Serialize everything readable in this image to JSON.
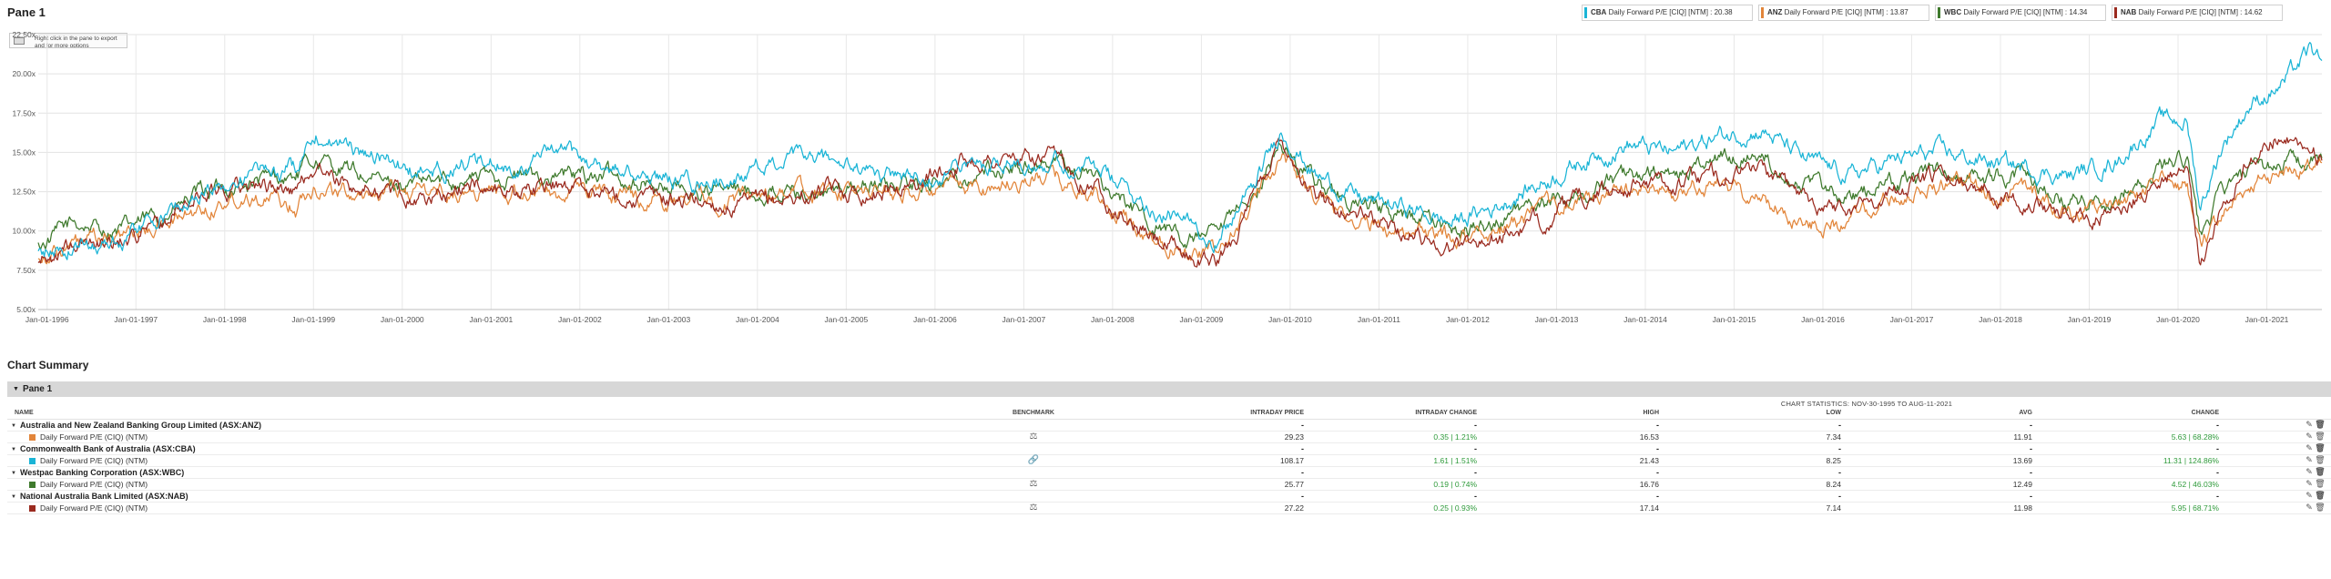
{
  "pane": {
    "title": "Pane 1"
  },
  "hint": {
    "text": "Right click in the pane to export and for more options"
  },
  "legend": [
    {
      "ticker": "CBA",
      "label": " Daily Forward P/E [CIQ] [NTM] : 20.38",
      "color": "#1ab4d6"
    },
    {
      "ticker": "ANZ",
      "label": " Daily Forward P/E [CIQ] [NTM] : 13.87",
      "color": "#e2853a"
    },
    {
      "ticker": "WBC",
      "label": " Daily Forward P/E [CIQ] [NTM] : 14.34",
      "color": "#3f7a2d"
    },
    {
      "ticker": "NAB",
      "label": " Daily Forward P/E [CIQ] [NTM] : 14.62",
      "color": "#9a2a1f"
    }
  ],
  "chart_data": {
    "type": "line",
    "x_labels": [
      "Jan-01-1996",
      "Jan-01-1997",
      "Jan-01-1998",
      "Jan-01-1999",
      "Jan-01-2000",
      "Jan-01-2001",
      "Jan-01-2002",
      "Jan-01-2003",
      "Jan-01-2004",
      "Jan-01-2005",
      "Jan-01-2006",
      "Jan-01-2007",
      "Jan-01-2008",
      "Jan-01-2009",
      "Jan-01-2010",
      "Jan-01-2011",
      "Jan-01-2012",
      "Jan-01-2013",
      "Jan-01-2014",
      "Jan-01-2015",
      "Jan-01-2016",
      "Jan-01-2017",
      "Jan-01-2018",
      "Jan-01-2019",
      "Jan-01-2020",
      "Jan-01-2021"
    ],
    "y_ticks": [
      "5.00x",
      "7.50x",
      "10.00x",
      "12.50x",
      "15.00x",
      "17.50x",
      "20.00x",
      "22.50x"
    ],
    "ylim": [
      5,
      22.5
    ],
    "xlim": [
      1995.9,
      2021.62
    ],
    "grid": true,
    "legend_position": "top-right",
    "series": [
      {
        "name": "WBC",
        "color": "#3f7a2d",
        "points": [
          [
            1995.9,
            9.0
          ],
          [
            1996.3,
            10.5
          ],
          [
            1996.8,
            10.0
          ],
          [
            1997.3,
            11.0
          ],
          [
            1997.8,
            12.5
          ],
          [
            1998.3,
            13.0
          ],
          [
            1998.8,
            13.5
          ],
          [
            1999.0,
            14.5
          ],
          [
            1999.3,
            14.0
          ],
          [
            1999.8,
            13.0
          ],
          [
            2000.3,
            13.0
          ],
          [
            2000.8,
            13.5
          ],
          [
            2001.3,
            13.5
          ],
          [
            2001.8,
            13.5
          ],
          [
            2002.3,
            13.5
          ],
          [
            2002.8,
            13.0
          ],
          [
            2003.3,
            12.5
          ],
          [
            2003.8,
            12.5
          ],
          [
            2004.3,
            12.5
          ],
          [
            2004.8,
            12.5
          ],
          [
            2005.3,
            13.0
          ],
          [
            2005.8,
            13.0
          ],
          [
            2006.3,
            13.5
          ],
          [
            2006.8,
            14.0
          ],
          [
            2007.3,
            14.5
          ],
          [
            2007.8,
            13.5
          ],
          [
            2008.3,
            11.0
          ],
          [
            2008.8,
            9.5
          ],
          [
            2009.2,
            9.5
          ],
          [
            2009.6,
            12.5
          ],
          [
            2009.9,
            15.5
          ],
          [
            2010.3,
            13.0
          ],
          [
            2010.8,
            11.5
          ],
          [
            2011.3,
            11.0
          ],
          [
            2011.8,
            10.0
          ],
          [
            2012.3,
            10.5
          ],
          [
            2012.8,
            11.5
          ],
          [
            2013.3,
            12.5
          ],
          [
            2013.8,
            13.5
          ],
          [
            2014.3,
            13.5
          ],
          [
            2014.8,
            14.5
          ],
          [
            2015.3,
            15.0
          ],
          [
            2015.8,
            13.0
          ],
          [
            2016.3,
            12.0
          ],
          [
            2016.8,
            13.0
          ],
          [
            2017.3,
            14.0
          ],
          [
            2017.8,
            13.5
          ],
          [
            2018.3,
            13.5
          ],
          [
            2018.8,
            12.0
          ],
          [
            2019.3,
            12.0
          ],
          [
            2019.8,
            14.0
          ],
          [
            2020.1,
            14.5
          ],
          [
            2020.25,
            9.5
          ],
          [
            2020.5,
            12.5
          ],
          [
            2020.8,
            13.5
          ],
          [
            2021.2,
            14.5
          ],
          [
            2021.62,
            14.3
          ]
        ]
      },
      {
        "name": "ANZ",
        "color": "#e2853a",
        "points": [
          [
            1995.9,
            8.5
          ],
          [
            1996.3,
            9.0
          ],
          [
            1996.8,
            9.5
          ],
          [
            1997.3,
            10.5
          ],
          [
            1997.8,
            11.5
          ],
          [
            1998.3,
            12.5
          ],
          [
            1998.8,
            11.5
          ],
          [
            1999.0,
            13.0
          ],
          [
            1999.3,
            12.5
          ],
          [
            1999.8,
            12.5
          ],
          [
            2000.3,
            12.5
          ],
          [
            2000.8,
            12.5
          ],
          [
            2001.3,
            12.5
          ],
          [
            2001.8,
            12.5
          ],
          [
            2002.3,
            12.5
          ],
          [
            2002.8,
            12.0
          ],
          [
            2003.3,
            12.0
          ],
          [
            2003.8,
            12.0
          ],
          [
            2004.3,
            12.5
          ],
          [
            2004.8,
            12.5
          ],
          [
            2005.3,
            12.5
          ],
          [
            2005.8,
            12.5
          ],
          [
            2006.3,
            12.5
          ],
          [
            2006.8,
            13.0
          ],
          [
            2007.3,
            13.5
          ],
          [
            2007.8,
            12.0
          ],
          [
            2008.3,
            10.0
          ],
          [
            2008.8,
            9.0
          ],
          [
            2009.2,
            8.5
          ],
          [
            2009.6,
            12.0
          ],
          [
            2009.9,
            15.0
          ],
          [
            2010.3,
            12.0
          ],
          [
            2010.8,
            10.5
          ],
          [
            2011.3,
            10.0
          ],
          [
            2011.8,
            9.5
          ],
          [
            2012.3,
            10.0
          ],
          [
            2012.8,
            11.0
          ],
          [
            2013.3,
            12.0
          ],
          [
            2013.8,
            12.5
          ],
          [
            2014.3,
            12.5
          ],
          [
            2014.8,
            13.0
          ],
          [
            2015.3,
            12.0
          ],
          [
            2015.8,
            10.5
          ],
          [
            2016.3,
            10.5
          ],
          [
            2016.8,
            12.0
          ],
          [
            2017.3,
            13.0
          ],
          [
            2017.8,
            12.5
          ],
          [
            2018.3,
            12.5
          ],
          [
            2018.8,
            11.0
          ],
          [
            2019.3,
            11.5
          ],
          [
            2019.8,
            13.0
          ],
          [
            2020.1,
            13.0
          ],
          [
            2020.25,
            9.0
          ],
          [
            2020.5,
            11.0
          ],
          [
            2020.8,
            13.0
          ],
          [
            2021.2,
            14.0
          ],
          [
            2021.62,
            13.87
          ]
        ]
      },
      {
        "name": "NAB",
        "color": "#9a2a1f",
        "points": [
          [
            1995.9,
            8.0
          ],
          [
            1996.3,
            9.0
          ],
          [
            1996.8,
            9.5
          ],
          [
            1997.3,
            10.5
          ],
          [
            1997.8,
            12.5
          ],
          [
            1998.3,
            13.0
          ],
          [
            1998.8,
            12.5
          ],
          [
            1999.0,
            14.0
          ],
          [
            1999.3,
            13.0
          ],
          [
            1999.8,
            12.5
          ],
          [
            2000.3,
            12.0
          ],
          [
            2000.8,
            13.0
          ],
          [
            2001.3,
            12.5
          ],
          [
            2001.8,
            13.0
          ],
          [
            2002.3,
            12.5
          ],
          [
            2002.8,
            12.0
          ],
          [
            2003.3,
            12.0
          ],
          [
            2003.8,
            11.5
          ],
          [
            2004.3,
            12.0
          ],
          [
            2004.8,
            12.5
          ],
          [
            2005.3,
            12.5
          ],
          [
            2005.8,
            13.0
          ],
          [
            2006.3,
            14.5
          ],
          [
            2006.8,
            14.5
          ],
          [
            2007.3,
            14.5
          ],
          [
            2007.8,
            13.0
          ],
          [
            2008.3,
            10.0
          ],
          [
            2008.8,
            8.5
          ],
          [
            2009.2,
            8.0
          ],
          [
            2009.6,
            12.0
          ],
          [
            2009.9,
            16.0
          ],
          [
            2010.3,
            12.0
          ],
          [
            2010.8,
            11.0
          ],
          [
            2011.3,
            10.0
          ],
          [
            2011.8,
            9.0
          ],
          [
            2012.3,
            9.5
          ],
          [
            2012.8,
            10.5
          ],
          [
            2013.3,
            12.0
          ],
          [
            2013.8,
            13.0
          ],
          [
            2014.3,
            13.0
          ],
          [
            2014.8,
            13.5
          ],
          [
            2015.3,
            14.0
          ],
          [
            2015.8,
            12.0
          ],
          [
            2016.3,
            11.5
          ],
          [
            2016.8,
            12.5
          ],
          [
            2017.3,
            13.5
          ],
          [
            2017.8,
            13.0
          ],
          [
            2018.3,
            12.0
          ],
          [
            2018.8,
            11.0
          ],
          [
            2019.3,
            11.0
          ],
          [
            2019.8,
            13.5
          ],
          [
            2020.1,
            14.0
          ],
          [
            2020.25,
            7.5
          ],
          [
            2020.5,
            12.0
          ],
          [
            2020.8,
            14.5
          ],
          [
            2021.2,
            16.5
          ],
          [
            2021.62,
            14.62
          ]
        ]
      },
      {
        "name": "CBA",
        "color": "#1ab4d6",
        "points": [
          [
            1995.9,
            8.5
          ],
          [
            1996.3,
            9.0
          ],
          [
            1996.8,
            9.5
          ],
          [
            1997.3,
            11.0
          ],
          [
            1997.8,
            12.5
          ],
          [
            1998.3,
            13.5
          ],
          [
            1998.8,
            14.0
          ],
          [
            1999.0,
            16.5
          ],
          [
            1999.3,
            15.5
          ],
          [
            1999.8,
            14.5
          ],
          [
            2000.3,
            13.5
          ],
          [
            2000.8,
            14.5
          ],
          [
            2001.3,
            14.0
          ],
          [
            2001.8,
            15.0
          ],
          [
            2002.3,
            14.0
          ],
          [
            2002.8,
            13.5
          ],
          [
            2003.3,
            13.0
          ],
          [
            2003.8,
            13.5
          ],
          [
            2004.3,
            14.5
          ],
          [
            2004.8,
            14.5
          ],
          [
            2005.3,
            13.5
          ],
          [
            2005.8,
            13.5
          ],
          [
            2006.3,
            14.0
          ],
          [
            2006.8,
            14.5
          ],
          [
            2007.3,
            14.5
          ],
          [
            2007.8,
            14.0
          ],
          [
            2008.3,
            12.0
          ],
          [
            2008.8,
            10.5
          ],
          [
            2009.2,
            9.5
          ],
          [
            2009.6,
            13.0
          ],
          [
            2009.9,
            16.5
          ],
          [
            2010.3,
            13.5
          ],
          [
            2010.8,
            12.0
          ],
          [
            2011.3,
            11.5
          ],
          [
            2011.8,
            10.5
          ],
          [
            2012.3,
            11.5
          ],
          [
            2012.8,
            13.0
          ],
          [
            2013.3,
            14.5
          ],
          [
            2013.8,
            15.5
          ],
          [
            2014.3,
            15.0
          ],
          [
            2014.8,
            16.0
          ],
          [
            2015.3,
            16.5
          ],
          [
            2015.8,
            14.5
          ],
          [
            2016.3,
            13.5
          ],
          [
            2016.8,
            14.5
          ],
          [
            2017.3,
            15.0
          ],
          [
            2017.8,
            14.5
          ],
          [
            2018.3,
            14.0
          ],
          [
            2018.8,
            13.5
          ],
          [
            2019.3,
            14.5
          ],
          [
            2019.8,
            17.0
          ],
          [
            2020.1,
            17.0
          ],
          [
            2020.25,
            11.5
          ],
          [
            2020.5,
            15.5
          ],
          [
            2020.8,
            18.0
          ],
          [
            2021.2,
            19.5
          ],
          [
            2021.5,
            21.5
          ],
          [
            2021.62,
            20.38
          ]
        ]
      }
    ]
  },
  "summary": {
    "title": "Chart Summary",
    "pane_label": "Pane 1",
    "stats_header": "CHART STATISTICS: NOV-30-1995 TO AUG-11-2021",
    "columns": {
      "name": "NAME",
      "benchmark": "BENCHMARK",
      "intraday_price": "INTRADAY PRICE",
      "intraday_change": "INTRADAY CHANGE",
      "high": "HIGH",
      "low": "LOW",
      "avg": "AVG",
      "change": "CHANGE"
    },
    "groups": [
      {
        "company": "Australia and New Zealand Banking Group Limited (ASX:ANZ)",
        "dash": "-",
        "series_label": "Daily Forward P/E (CIQ) (NTM)",
        "color": "#e2853a",
        "bench_icon": "scale-icon",
        "bench_glyph": "⚖",
        "price": "29.23",
        "intraday_change": "0.35 | 1.21%",
        "high": "16.53",
        "low": "7.34",
        "avg": "11.91",
        "change": "5.63 | 68.28%"
      },
      {
        "company": "Commonwealth Bank of Australia (ASX:CBA)",
        "dash": "-",
        "series_label": "Daily Forward P/E (CIQ) (NTM)",
        "color": "#1ab4d6",
        "bench_icon": "link-icon",
        "bench_glyph": "🔗",
        "price": "108.17",
        "intraday_change": "1.61 | 1.51%",
        "high": "21.43",
        "low": "8.25",
        "avg": "13.69",
        "change": "11.31 | 124.86%"
      },
      {
        "company": "Westpac Banking Corporation (ASX:WBC)",
        "dash": "-",
        "series_label": "Daily Forward P/E (CIQ) (NTM)",
        "color": "#3f7a2d",
        "bench_icon": "scale-icon",
        "bench_glyph": "⚖",
        "price": "25.77",
        "intraday_change": "0.19 | 0.74%",
        "high": "16.76",
        "low": "8.24",
        "avg": "12.49",
        "change": "4.52 | 46.03%"
      },
      {
        "company": "National Australia Bank Limited (ASX:NAB)",
        "dash": "-",
        "series_label": "Daily Forward P/E (CIQ) (NTM)",
        "color": "#9a2a1f",
        "bench_icon": "scale-icon",
        "bench_glyph": "⚖",
        "price": "27.22",
        "intraday_change": "0.25 | 0.93%",
        "high": "17.14",
        "low": "7.14",
        "avg": "11.98",
        "change": "5.95 | 68.71%"
      }
    ]
  }
}
